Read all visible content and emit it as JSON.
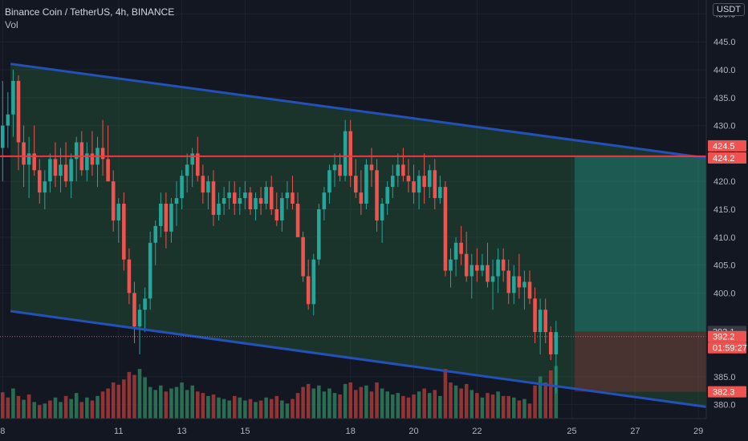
{
  "legend": {
    "symbol": "Binance Coin / TetherUS, 4h, BINANCE",
    "indicator": "Vol"
  },
  "currency_badge": "USDT",
  "colors": {
    "background": "#131722",
    "grid": "#1e222d",
    "up": "#26a69a",
    "down": "#ef5350",
    "vol_up": "#2e7d5b",
    "vol_down": "#a83a3a",
    "channel_line": "#2351b8",
    "resistance": "#f23645",
    "channel_fill": "rgba(46,125,70,0.28)",
    "target_zone": "rgba(38,166,154,0.35)",
    "stop_zone": "rgba(242,54,69,0.22)",
    "axis_text": "#b2b5be"
  },
  "chart_data": {
    "type": "candlestick",
    "title": "Binance Coin / TetherUS, 4h, BINANCE",
    "indicator": "Vol",
    "ylim": [
      377.5,
      452.5
    ],
    "y_ticks": [
      380.0,
      385.0,
      400.0,
      405.0,
      410.0,
      415.0,
      420.0,
      430.0,
      435.0,
      440.0,
      445.0,
      450.0
    ],
    "x_tick_labels": [
      "8",
      "11",
      "13",
      "15",
      "18",
      "20",
      "22",
      "25",
      "27",
      "29"
    ],
    "x_tick_index": [
      0.5,
      22.5,
      34.5,
      46.5,
      66.5,
      78.5,
      90.5,
      108.5,
      120.5,
      132.5
    ],
    "x_range": [
      0,
      134
    ],
    "ohlc": [
      [
        426,
        438,
        420,
        430
      ],
      [
        430,
        436,
        426,
        432
      ],
      [
        432,
        440,
        428,
        438
      ],
      [
        438,
        439,
        422,
        427
      ],
      [
        427,
        430,
        419,
        423
      ],
      [
        423,
        428,
        417,
        425
      ],
      [
        425,
        430,
        421,
        422
      ],
      [
        422,
        424,
        416,
        418
      ],
      [
        418,
        422,
        415,
        420
      ],
      [
        420,
        425,
        418,
        424
      ],
      [
        424,
        427,
        419,
        421
      ],
      [
        421,
        426,
        418,
        423
      ],
      [
        423,
        427,
        419,
        420
      ],
      [
        420,
        425,
        417,
        424
      ],
      [
        424,
        428,
        420,
        427
      ],
      [
        427,
        429,
        421,
        422
      ],
      [
        422,
        427,
        420,
        425
      ],
      [
        425,
        429,
        421,
        423
      ],
      [
        423,
        428,
        419,
        426
      ],
      [
        426,
        431,
        421,
        424
      ],
      [
        424,
        430,
        420,
        420
      ],
      [
        420,
        422,
        411,
        413
      ],
      [
        413,
        417,
        409,
        416
      ],
      [
        416,
        418,
        404,
        406
      ],
      [
        406,
        408,
        398,
        400
      ],
      [
        400,
        402,
        391,
        394
      ],
      [
        394,
        398,
        389,
        397
      ],
      [
        397,
        401,
        393,
        399
      ],
      [
        399,
        411,
        397,
        409
      ],
      [
        409,
        413,
        405,
        412
      ],
      [
        412,
        418,
        410,
        416
      ],
      [
        416,
        418,
        408,
        411
      ],
      [
        411,
        417,
        409,
        416
      ],
      [
        416,
        420,
        412,
        417
      ],
      [
        417,
        422,
        415,
        421
      ],
      [
        421,
        425,
        418,
        423
      ],
      [
        423,
        426,
        419,
        425
      ],
      [
        425,
        428,
        420,
        421
      ],
      [
        421,
        423,
        416,
        418
      ],
      [
        418,
        421,
        415,
        420
      ],
      [
        420,
        422,
        412,
        414
      ],
      [
        414,
        418,
        413,
        416
      ],
      [
        416,
        419,
        414,
        417
      ],
      [
        417,
        420,
        415,
        418
      ],
      [
        418,
        420,
        414,
        416
      ],
      [
        416,
        419,
        414,
        417
      ],
      [
        417,
        420,
        415,
        418
      ],
      [
        418,
        419,
        414,
        415
      ],
      [
        415,
        418,
        413,
        417
      ],
      [
        417,
        419,
        414,
        416
      ],
      [
        416,
        420,
        415,
        419
      ],
      [
        419,
        421,
        414,
        415
      ],
      [
        415,
        418,
        412,
        413
      ],
      [
        413,
        418,
        411,
        417
      ],
      [
        417,
        420,
        415,
        418
      ],
      [
        418,
        421,
        415,
        416
      ],
      [
        416,
        418,
        410,
        410
      ],
      [
        410,
        411,
        402,
        403
      ],
      [
        403,
        406,
        397,
        398
      ],
      [
        398,
        407,
        396,
        406
      ],
      [
        406,
        416,
        405,
        415
      ],
      [
        415,
        419,
        413,
        418
      ],
      [
        418,
        423,
        416,
        422
      ],
      [
        422,
        425,
        419,
        423
      ],
      [
        423,
        425,
        420,
        421
      ],
      [
        421,
        431,
        420,
        429
      ],
      [
        429,
        431,
        419,
        421
      ],
      [
        421,
        424,
        417,
        418
      ],
      [
        418,
        422,
        414,
        416
      ],
      [
        416,
        424,
        415,
        423
      ],
      [
        423,
        426,
        419,
        422
      ],
      [
        422,
        424,
        411,
        413
      ],
      [
        413,
        417,
        409,
        416
      ],
      [
        416,
        420,
        414,
        419
      ],
      [
        419,
        423,
        417,
        421
      ],
      [
        421,
        425,
        419,
        423
      ],
      [
        423,
        426,
        420,
        421
      ],
      [
        421,
        424,
        418,
        420
      ],
      [
        420,
        423,
        416,
        418
      ],
      [
        418,
        422,
        415,
        421
      ],
      [
        421,
        425,
        416,
        419
      ],
      [
        419,
        423,
        417,
        422
      ],
      [
        422,
        424,
        415,
        417
      ],
      [
        417,
        421,
        416,
        419
      ],
      [
        419,
        420,
        403,
        404
      ],
      [
        404,
        408,
        401,
        406
      ],
      [
        406,
        410,
        403,
        409
      ],
      [
        409,
        412,
        405,
        407
      ],
      [
        407,
        411,
        402,
        403
      ],
      [
        403,
        407,
        399,
        405
      ],
      [
        405,
        408,
        402,
        404
      ],
      [
        404,
        407,
        403,
        405
      ],
      [
        405,
        409,
        401,
        402
      ],
      [
        402,
        406,
        397,
        403
      ],
      [
        403,
        408,
        400,
        406
      ],
      [
        406,
        408,
        402,
        404
      ],
      [
        404,
        406,
        398,
        400
      ],
      [
        400,
        405,
        398,
        403
      ],
      [
        403,
        407,
        399,
        401
      ],
      [
        401,
        404,
        397,
        402
      ],
      [
        402,
        404,
        398,
        399
      ],
      [
        399,
        401,
        391,
        393
      ],
      [
        393,
        399,
        389,
        397
      ],
      [
        397,
        399,
        391,
        393
      ],
      [
        393,
        394,
        388,
        389
      ],
      [
        389,
        395,
        382,
        393
      ]
    ],
    "volume": [
      [
        35,
        0
      ],
      [
        28,
        0
      ],
      [
        40,
        1
      ],
      [
        30,
        0
      ],
      [
        25,
        1
      ],
      [
        32,
        0
      ],
      [
        22,
        1
      ],
      [
        18,
        0
      ],
      [
        20,
        1
      ],
      [
        24,
        0
      ],
      [
        28,
        1
      ],
      [
        22,
        1
      ],
      [
        30,
        0
      ],
      [
        26,
        1
      ],
      [
        34,
        1
      ],
      [
        22,
        0
      ],
      [
        28,
        1
      ],
      [
        24,
        0
      ],
      [
        30,
        1
      ],
      [
        36,
        0
      ],
      [
        40,
        0
      ],
      [
        48,
        0
      ],
      [
        45,
        0
      ],
      [
        52,
        0
      ],
      [
        62,
        0
      ],
      [
        58,
        0
      ],
      [
        66,
        1
      ],
      [
        55,
        1
      ],
      [
        42,
        1
      ],
      [
        38,
        1
      ],
      [
        44,
        1
      ],
      [
        36,
        0
      ],
      [
        40,
        1
      ],
      [
        42,
        1
      ],
      [
        48,
        1
      ],
      [
        38,
        1
      ],
      [
        44,
        1
      ],
      [
        36,
        0
      ],
      [
        34,
        0
      ],
      [
        30,
        1
      ],
      [
        32,
        0
      ],
      [
        28,
        1
      ],
      [
        26,
        1
      ],
      [
        24,
        1
      ],
      [
        30,
        0
      ],
      [
        28,
        1
      ],
      [
        24,
        1
      ],
      [
        26,
        0
      ],
      [
        22,
        1
      ],
      [
        24,
        0
      ],
      [
        28,
        1
      ],
      [
        26,
        0
      ],
      [
        30,
        0
      ],
      [
        24,
        1
      ],
      [
        20,
        1
      ],
      [
        26,
        0
      ],
      [
        34,
        0
      ],
      [
        42,
        0
      ],
      [
        46,
        0
      ],
      [
        40,
        1
      ],
      [
        44,
        1
      ],
      [
        36,
        1
      ],
      [
        40,
        1
      ],
      [
        34,
        1
      ],
      [
        32,
        0
      ],
      [
        46,
        1
      ],
      [
        48,
        0
      ],
      [
        38,
        0
      ],
      [
        42,
        0
      ],
      [
        44,
        1
      ],
      [
        36,
        0
      ],
      [
        48,
        0
      ],
      [
        40,
        1
      ],
      [
        36,
        1
      ],
      [
        32,
        1
      ],
      [
        34,
        1
      ],
      [
        30,
        0
      ],
      [
        28,
        0
      ],
      [
        32,
        0
      ],
      [
        36,
        1
      ],
      [
        40,
        0
      ],
      [
        34,
        1
      ],
      [
        38,
        0
      ],
      [
        30,
        1
      ],
      [
        66,
        0
      ],
      [
        48,
        0
      ],
      [
        44,
        1
      ],
      [
        40,
        0
      ],
      [
        46,
        0
      ],
      [
        38,
        1
      ],
      [
        34,
        0
      ],
      [
        28,
        1
      ],
      [
        34,
        0
      ],
      [
        32,
        0
      ],
      [
        36,
        1
      ],
      [
        30,
        0
      ],
      [
        30,
        0
      ],
      [
        28,
        1
      ],
      [
        24,
        0
      ],
      [
        26,
        1
      ],
      [
        20,
        0
      ],
      [
        44,
        0
      ],
      [
        56,
        1
      ],
      [
        48,
        0
      ],
      [
        64,
        0
      ],
      [
        70,
        1
      ]
    ],
    "channel_upper": {
      "x": [
        0,
        134
      ],
      "y": [
        441.3,
        424.2
      ]
    },
    "channel_lower": {
      "x": [
        0,
        134
      ],
      "y": [
        397.0,
        379.6
      ]
    },
    "resistance_level": 424.5,
    "target_zone": {
      "x_start": 109,
      "x_end": 134,
      "y_top": 424.5,
      "y_bottom": 393.1
    },
    "stop_zone": {
      "x_start": 109,
      "x_end": 134,
      "y_top": 393.1,
      "y_bottom": 382.3
    },
    "price_labels": [
      {
        "label": "424.5",
        "value": 424.5,
        "kind": "red"
      },
      {
        "label": "424.2",
        "value": 424.2,
        "kind": "red"
      },
      {
        "label": "393.1",
        "value": 393.1,
        "kind": "gray"
      },
      {
        "label": "392.2",
        "value": 392.2,
        "kind": "red"
      },
      {
        "label": "01:59:27",
        "value": 392.2,
        "kind": "red-sub"
      },
      {
        "label": "382.3",
        "value": 382.3,
        "kind": "red"
      }
    ],
    "last_price": 392.2
  }
}
